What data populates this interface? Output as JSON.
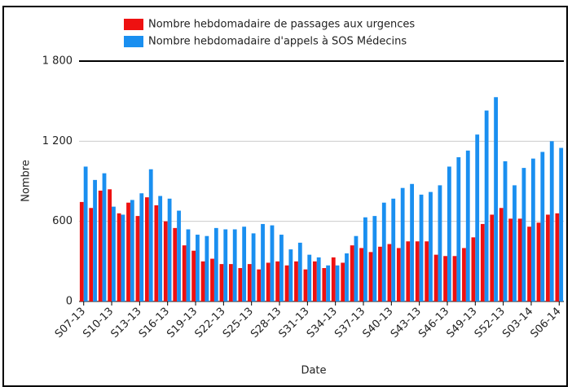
{
  "chart_data": {
    "type": "bar",
    "x_label": "Date",
    "y_label": "Nombre",
    "categories": [
      "S07-13",
      null,
      null,
      "S10-13",
      null,
      null,
      "S13-13",
      null,
      null,
      "S16-13",
      null,
      null,
      "S19-13",
      null,
      null,
      "S22-13",
      null,
      null,
      "S25-13",
      null,
      null,
      "S28-13",
      null,
      null,
      "S31-13",
      null,
      null,
      "S34-13",
      null,
      null,
      "S37-13",
      null,
      null,
      "S40-13",
      null,
      null,
      "S43-13",
      null,
      null,
      "S46-13",
      null,
      null,
      "S49-13",
      null,
      null,
      "S52-13",
      null,
      null,
      "S03-14",
      null,
      null,
      "S06-14"
    ],
    "series": [
      {
        "name": "Nombre hebdomadaire de passages aux urgences",
        "color": "#ee1111",
        "values": [
          745,
          700,
          830,
          840,
          660,
          740,
          640,
          780,
          720,
          600,
          550,
          420,
          380,
          300,
          320,
          280,
          280,
          250,
          280,
          240,
          290,
          300,
          270,
          300,
          240,
          300,
          250,
          330,
          290,
          420,
          400,
          370,
          410,
          430,
          400,
          450,
          450,
          450,
          350,
          340,
          340,
          400,
          480,
          580,
          650,
          700,
          620,
          620,
          560,
          590,
          650,
          660
        ]
      },
      {
        "name": "Nombre hebdomadaire d'appels à SOS Médecins",
        "color": "#1a8ff0",
        "values": [
          1010,
          910,
          960,
          710,
          650,
          760,
          810,
          990,
          790,
          770,
          680,
          540,
          500,
          490,
          550,
          540,
          540,
          560,
          510,
          580,
          570,
          500,
          390,
          440,
          350,
          330,
          270,
          270,
          360,
          490,
          630,
          640,
          740,
          770,
          850,
          880,
          800,
          820,
          870,
          1010,
          1080,
          1130,
          1250,
          1430,
          1530,
          1050,
          870,
          1000,
          1070,
          1120,
          1200,
          1150
        ]
      }
    ],
    "ylim": [
      0,
      1800
    ],
    "yticks": [
      0,
      600,
      {
        "value": 1200,
        "label": "1 200"
      },
      {
        "value": 1800,
        "label": "1 800"
      }
    ],
    "grid": true
  }
}
